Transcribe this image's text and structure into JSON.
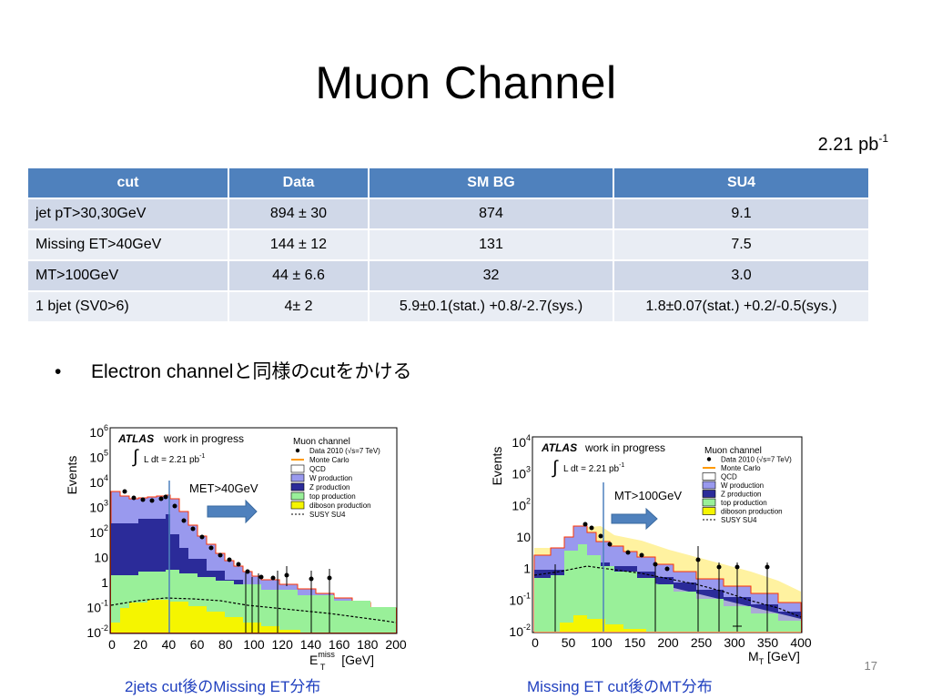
{
  "slide": {
    "title": "Muon Channel",
    "lumi_base": "2.21 pb",
    "lumi_exp": "-1",
    "bullet_text": "Electron channelと同様のcutをかける",
    "page_number": "17"
  },
  "table": {
    "headers": [
      "cut",
      "Data",
      "SM BG",
      "SU4"
    ],
    "rows": [
      [
        "jet pT>30,30GeV",
        "894 ± 30",
        "874",
        "9.1"
      ],
      [
        "Missing ET>40GeV",
        "144 ± 12",
        "131",
        "7.5"
      ],
      [
        "MT>100GeV",
        "44 ± 6.6",
        "32",
        "3.0"
      ],
      [
        "1 bjet (SV0>6)",
        "4± 2",
        "5.9±0.1(stat.) +0.8/-2.7(sys.)",
        "1.8±0.07(stat.) +0.2/-0.5(sys.)"
      ]
    ]
  },
  "plots": {
    "left": {
      "caption": "2jets cut後のMissing ET分布",
      "cut_label": "MET>40GeV",
      "ylabel": "Events",
      "xlabel_main": "E",
      "xlabel_sup": "miss",
      "xlabel_sub": "T",
      "xlabel_unit": " [GeV]",
      "yticks": [
        "10^-2",
        "10^-1",
        "1",
        "10",
        "10^2",
        "10^3",
        "10^4",
        "10^5",
        "10^6"
      ],
      "xticks": [
        "0",
        "20",
        "40",
        "60",
        "80",
        "100",
        "120",
        "140",
        "160",
        "180",
        "200"
      ]
    },
    "right": {
      "caption": "Missing ET cut後のMT分布",
      "cut_label": "MT>100GeV",
      "ylabel": "Events",
      "xlabel_main": "M",
      "xlabel_sub": "T",
      "xlabel_unit": " [GeV]",
      "yticks": [
        "10^-2",
        "10^-1",
        "1",
        "10",
        "10^2",
        "10^3",
        "10^4"
      ],
      "xticks": [
        "0",
        "50",
        "100",
        "150",
        "200",
        "250",
        "300",
        "350",
        "400"
      ]
    },
    "atlas": "ATLAS",
    "wip": "work in progress",
    "lumi_int": "L dt = 2.21 pb",
    "lumi_int_exp": "-1",
    "legend_title": "Muon channel",
    "legend": [
      {
        "label": "Data 2010 (√s=7 TeV)",
        "kind": "dot",
        "color": "#000000"
      },
      {
        "label": "Monte Carlo",
        "kind": "line",
        "color": "#ff9900"
      },
      {
        "label": "QCD",
        "kind": "box",
        "color": "#ffffff"
      },
      {
        "label": "W production",
        "kind": "box",
        "color": "#9999ee"
      },
      {
        "label": "Z production",
        "kind": "box",
        "color": "#2b2b99"
      },
      {
        "label": "top production",
        "kind": "box",
        "color": "#99f099"
      },
      {
        "label": "diboson production",
        "kind": "box",
        "color": "#f5f500"
      },
      {
        "label": "SUSY SU4",
        "kind": "dash",
        "color": "#000000"
      }
    ]
  }
}
